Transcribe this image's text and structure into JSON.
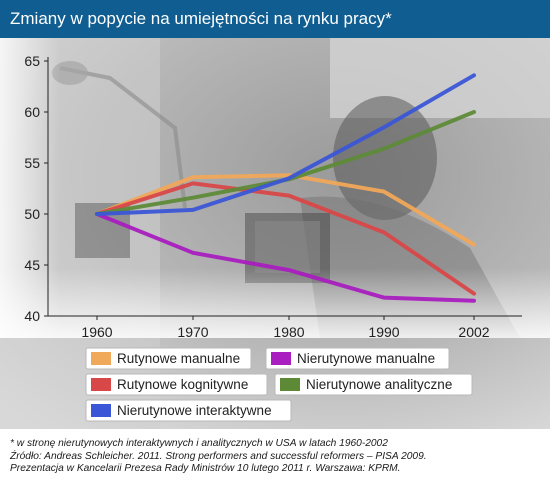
{
  "title": "Zmiany w popycie na umiejętności na rynku pracy*",
  "chart_data": {
    "type": "line",
    "title": "Zmiany w popycie na umiejętności na rynku pracy*",
    "xlabel": "",
    "ylabel": "",
    "x": [
      "1960",
      "1970",
      "1980",
      "1990",
      "2002"
    ],
    "ylim": [
      40,
      65
    ],
    "yticks": [
      40,
      45,
      50,
      55,
      60,
      65
    ],
    "grid": false,
    "legend_position": "bottom",
    "series": [
      {
        "name": "Rutynowe manualne",
        "color": "#f0a85a",
        "values": [
          50,
          53.6,
          53.8,
          52.2,
          47
        ]
      },
      {
        "name": "Nierutynowe manualne",
        "color": "#a91fbf",
        "values": [
          50,
          46.2,
          44.5,
          41.8,
          41.5
        ]
      },
      {
        "name": "Rutynowe kognitywne",
        "color": "#d94849",
        "values": [
          50,
          53,
          51.8,
          48.2,
          42.2
        ]
      },
      {
        "name": "Nierutynowe analityczne",
        "color": "#5e8a38",
        "values": [
          50,
          51.6,
          53.4,
          56.4,
          60
        ]
      },
      {
        "name": "Nierutynowe interaktywne",
        "color": "#3b56d6",
        "values": [
          50,
          50.4,
          53.5,
          58.5,
          63.6
        ]
      }
    ]
  },
  "footnotes": [
    "* w stronę nierutynowych interaktywnych i analitycznych w USA w latach 1960-2002",
    "Źródło: Andreas Schleicher. 2011. Strong performers and successful reformers – PISA 2009.",
    "Prezentacja w Kancelarii Prezesa Rady Ministrów 10 lutego 2011 r. Warszawa: KPRM."
  ]
}
